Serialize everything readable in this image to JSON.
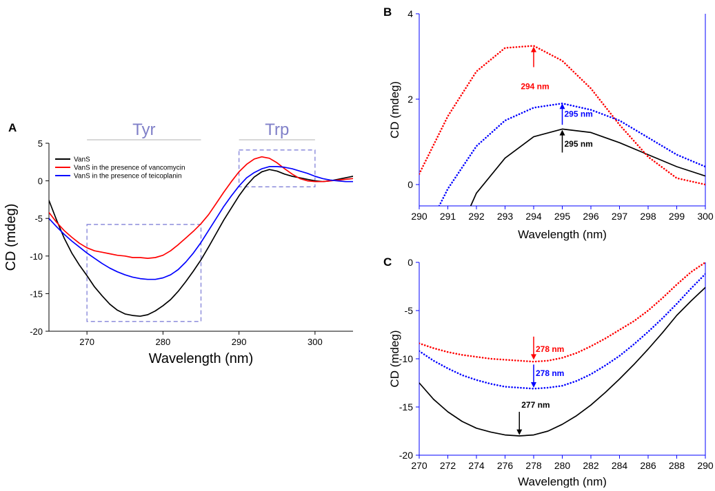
{
  "chart_data": [
    {
      "panel": "A",
      "type": "line",
      "xlabel": "Wavelength (nm)",
      "ylabel": "CD (mdeg)",
      "xlim": [
        265,
        305
      ],
      "ylim": [
        -20,
        5
      ],
      "xticks": [
        270,
        280,
        290,
        300
      ],
      "yticks": [
        -20,
        -15,
        -10,
        -5,
        0,
        5
      ],
      "grid": false,
      "legend_position": "top-left",
      "region_labels": [
        {
          "text": "Tyr",
          "x_range": [
            270,
            285
          ]
        },
        {
          "text": "Trp",
          "x_range": [
            290,
            300
          ]
        }
      ],
      "highlight_boxes": [
        {
          "x_range": [
            270,
            285
          ],
          "y_range": [
            -18.7,
            -5.8
          ]
        },
        {
          "x_range": [
            290,
            300
          ],
          "y_range": [
            -0.8,
            4.1
          ]
        }
      ],
      "series": [
        {
          "name": "VanS",
          "color": "#000000",
          "style": "solid",
          "x": [
            265,
            266,
            267,
            268,
            269,
            270,
            271,
            272,
            273,
            274,
            275,
            276,
            277,
            278,
            279,
            280,
            281,
            282,
            283,
            284,
            285,
            286,
            287,
            288,
            289,
            290,
            291,
            292,
            293,
            294,
            295,
            296,
            297,
            298,
            299,
            300,
            301,
            302,
            303,
            304,
            305
          ],
          "y": [
            -2.6,
            -5.2,
            -7.6,
            -9.6,
            -11.2,
            -12.6,
            -14.1,
            -15.3,
            -16.4,
            -17.2,
            -17.7,
            -17.9,
            -18.0,
            -17.8,
            -17.3,
            -16.6,
            -15.8,
            -14.7,
            -13.4,
            -12.0,
            -10.5,
            -8.8,
            -7.0,
            -5.2,
            -3.6,
            -2.0,
            -0.6,
            0.5,
            1.2,
            1.5,
            1.3,
            0.9,
            0.6,
            0.4,
            0.2,
            0.0,
            -0.1,
            0.0,
            0.2,
            0.4,
            0.6
          ]
        },
        {
          "name": "VanS in the presence of vancomycin",
          "color": "#ff0000",
          "style": "solid",
          "x": [
            265,
            266,
            267,
            268,
            269,
            270,
            271,
            272,
            273,
            274,
            275,
            276,
            277,
            278,
            279,
            280,
            281,
            282,
            283,
            284,
            285,
            286,
            287,
            288,
            289,
            290,
            291,
            292,
            293,
            294,
            295,
            296,
            297,
            298,
            299,
            300,
            301,
            302,
            303,
            304,
            305
          ],
          "y": [
            -4.2,
            -5.5,
            -6.6,
            -7.5,
            -8.3,
            -8.9,
            -9.3,
            -9.5,
            -9.7,
            -9.9,
            -10.0,
            -10.2,
            -10.2,
            -10.3,
            -10.2,
            -9.9,
            -9.3,
            -8.5,
            -7.6,
            -6.7,
            -5.7,
            -4.5,
            -3.0,
            -1.5,
            -0.1,
            1.2,
            2.2,
            2.9,
            3.2,
            3.0,
            2.4,
            1.6,
            0.9,
            0.3,
            0.0,
            -0.1,
            -0.1,
            0.0,
            0.1,
            0.2,
            0.3
          ]
        },
        {
          "name": "VanS in the presence of teicoplanin",
          "color": "#0000ff",
          "style": "solid",
          "x": [
            265,
            266,
            267,
            268,
            269,
            270,
            271,
            272,
            273,
            274,
            275,
            276,
            277,
            278,
            279,
            280,
            281,
            282,
            283,
            284,
            285,
            286,
            287,
            288,
            289,
            290,
            291,
            292,
            293,
            294,
            295,
            296,
            297,
            298,
            299,
            300,
            301,
            302,
            303,
            304,
            305
          ],
          "y": [
            -5.0,
            -6.1,
            -7.1,
            -8.0,
            -8.8,
            -9.6,
            -10.3,
            -11.0,
            -11.6,
            -12.1,
            -12.5,
            -12.8,
            -13.0,
            -13.1,
            -13.1,
            -12.9,
            -12.5,
            -11.8,
            -10.8,
            -9.6,
            -8.2,
            -6.6,
            -5.0,
            -3.4,
            -2.0,
            -0.7,
            0.4,
            1.1,
            1.6,
            1.9,
            1.9,
            1.8,
            1.6,
            1.3,
            1.0,
            0.6,
            0.3,
            0.1,
            0.0,
            -0.1,
            -0.1
          ]
        }
      ]
    },
    {
      "panel": "B",
      "type": "line",
      "xlabel": "Wavelength (nm)",
      "ylabel": "CD (mdeg)",
      "xlim": [
        290,
        300
      ],
      "ylim": [
        -0.5,
        4
      ],
      "xticks": [
        290,
        291,
        292,
        293,
        294,
        295,
        296,
        297,
        298,
        299,
        300
      ],
      "yticks": [
        0,
        2,
        4
      ],
      "grid": false,
      "series": [
        {
          "color": "#000000",
          "style": "solid",
          "x": [
            291.8,
            292,
            293,
            294,
            295,
            296,
            297,
            298,
            299,
            300
          ],
          "y": [
            -0.5,
            -0.2,
            0.62,
            1.12,
            1.3,
            1.22,
            0.98,
            0.7,
            0.42,
            0.2
          ]
        },
        {
          "color": "#ff0000",
          "style": "dotted",
          "x": [
            290,
            291,
            292,
            293,
            294,
            295,
            296,
            297,
            298,
            299,
            300
          ],
          "y": [
            0.25,
            1.6,
            2.65,
            3.2,
            3.25,
            2.9,
            2.25,
            1.4,
            0.65,
            0.15,
            0.0
          ]
        },
        {
          "color": "#0000ff",
          "style": "dotted",
          "x": [
            290.7,
            291,
            292,
            293,
            294,
            295,
            296,
            297,
            298,
            299,
            300
          ],
          "y": [
            -0.5,
            -0.1,
            0.9,
            1.5,
            1.8,
            1.9,
            1.75,
            1.5,
            1.1,
            0.7,
            0.42
          ]
        }
      ],
      "annotations": [
        {
          "text": "294 nm",
          "x": 294,
          "color": "#ff0000",
          "arrow_from": 2.75,
          "arrow_to": 3.23,
          "label_y": 2.3
        },
        {
          "text": "295 nm",
          "x": 295,
          "color": "#0000ff",
          "arrow_from": 1.4,
          "arrow_to": 1.9,
          "label_y": 1.65
        },
        {
          "text": "295 nm",
          "x": 295,
          "color": "#000000",
          "arrow_from": 0.75,
          "arrow_to": 1.28,
          "label_y": 0.95
        }
      ]
    },
    {
      "panel": "C",
      "type": "line",
      "xlabel": "Wavelength (nm)",
      "ylabel": "CD (mdeg)",
      "xlim": [
        270,
        290
      ],
      "ylim": [
        -20,
        0
      ],
      "xticks": [
        270,
        272,
        274,
        276,
        278,
        280,
        282,
        284,
        286,
        288,
        290
      ],
      "yticks": [
        -20,
        -15,
        -10,
        -5,
        0
      ],
      "grid": false,
      "series": [
        {
          "color": "#000000",
          "style": "solid",
          "x": [
            270,
            271,
            272,
            273,
            274,
            275,
            276,
            277,
            278,
            279,
            280,
            281,
            282,
            283,
            284,
            285,
            286,
            287,
            288,
            289,
            290
          ],
          "y": [
            -12.5,
            -14.2,
            -15.5,
            -16.5,
            -17.2,
            -17.6,
            -17.9,
            -18.0,
            -17.9,
            -17.5,
            -16.8,
            -15.9,
            -14.8,
            -13.5,
            -12.1,
            -10.6,
            -9.0,
            -7.3,
            -5.5,
            -4.0,
            -2.6
          ]
        },
        {
          "color": "#ff0000",
          "style": "dotted",
          "x": [
            270,
            271,
            272,
            273,
            274,
            275,
            276,
            277,
            278,
            279,
            280,
            281,
            282,
            283,
            284,
            285,
            286,
            287,
            288,
            289,
            290
          ],
          "y": [
            -8.4,
            -8.9,
            -9.3,
            -9.6,
            -9.8,
            -10.0,
            -10.1,
            -10.2,
            -10.3,
            -10.2,
            -9.9,
            -9.4,
            -8.7,
            -7.9,
            -7.0,
            -6.1,
            -5.0,
            -3.7,
            -2.3,
            -1.0,
            0.0
          ]
        },
        {
          "color": "#0000ff",
          "style": "dotted",
          "x": [
            270,
            271,
            272,
            273,
            274,
            275,
            276,
            277,
            278,
            279,
            280,
            281,
            282,
            283,
            284,
            285,
            286,
            287,
            288,
            289,
            290
          ],
          "y": [
            -9.2,
            -10.2,
            -11.0,
            -11.7,
            -12.2,
            -12.6,
            -12.9,
            -13.0,
            -13.1,
            -13.0,
            -12.8,
            -12.3,
            -11.6,
            -10.7,
            -9.7,
            -8.5,
            -7.2,
            -5.8,
            -4.3,
            -2.7,
            -1.2
          ]
        }
      ],
      "annotations": [
        {
          "text": "278 nm",
          "x": 278,
          "color": "#ff0000",
          "arrow_from": -7.7,
          "arrow_to": -10.1,
          "label_y": -9.0
        },
        {
          "text": "278 nm",
          "x": 278,
          "color": "#0000ff",
          "arrow_from": -10.6,
          "arrow_to": -13.0,
          "label_y": -11.5
        },
        {
          "text": "277 nm",
          "x": 277,
          "color": "#000000",
          "arrow_from": -15.5,
          "arrow_to": -17.9,
          "label_y": -14.8
        }
      ]
    }
  ]
}
